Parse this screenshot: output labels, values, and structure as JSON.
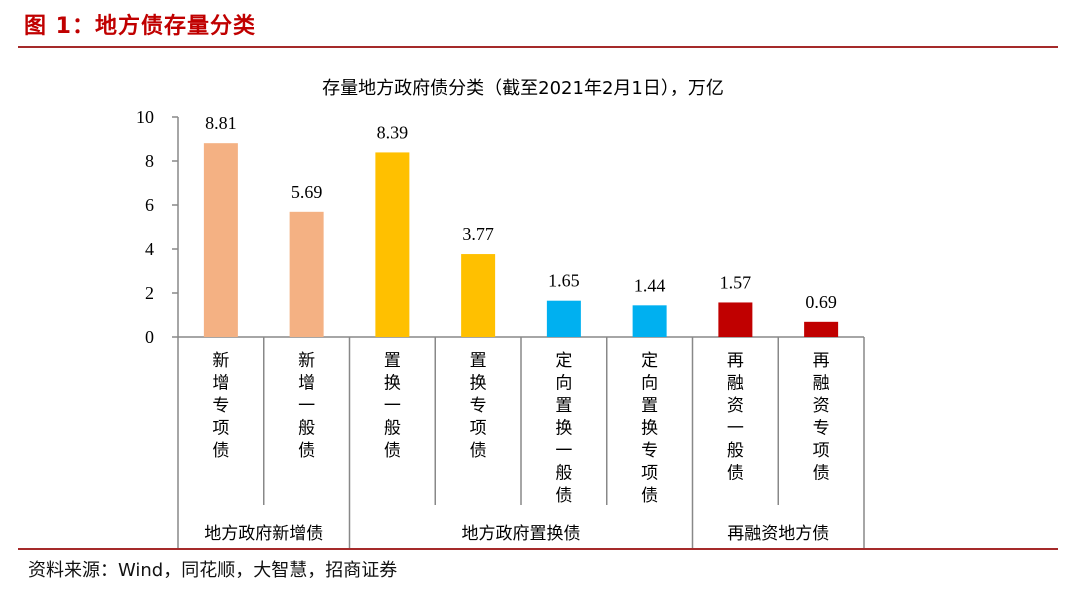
{
  "figure_title": "图 1：地方债存量分类",
  "source_text": "资料来源：Wind，同花顺，大智慧，招商证券",
  "chart_data": {
    "type": "bar",
    "title": "存量地方政府债分类（截至2021年2月1日），万亿",
    "ylim": [
      0,
      10
    ],
    "yticks": [
      0,
      2,
      4,
      6,
      8,
      10
    ],
    "grid": false,
    "categories": [
      "新增专项债",
      "新增一般债",
      "置换一般债",
      "置换专项债",
      "定向置换一般债",
      "定向置换专项债",
      "再融资一般债",
      "再融资专项债"
    ],
    "values": [
      8.81,
      5.69,
      8.39,
      3.77,
      1.65,
      1.44,
      1.57,
      0.69
    ],
    "value_labels": [
      "8.81",
      "5.69",
      "8.39",
      "3.77",
      "1.65",
      "1.44",
      "1.57",
      "0.69"
    ],
    "colors": [
      "#f4b183",
      "#f4b183",
      "#ffc000",
      "#ffc000",
      "#00b0f0",
      "#00b0f0",
      "#c00000",
      "#c00000"
    ],
    "groups": [
      {
        "label": "地方政府新增债",
        "start": 0,
        "end": 1
      },
      {
        "label": "地方政府置换债",
        "start": 2,
        "end": 5
      },
      {
        "label": "再融资地方债",
        "start": 6,
        "end": 7
      }
    ]
  }
}
